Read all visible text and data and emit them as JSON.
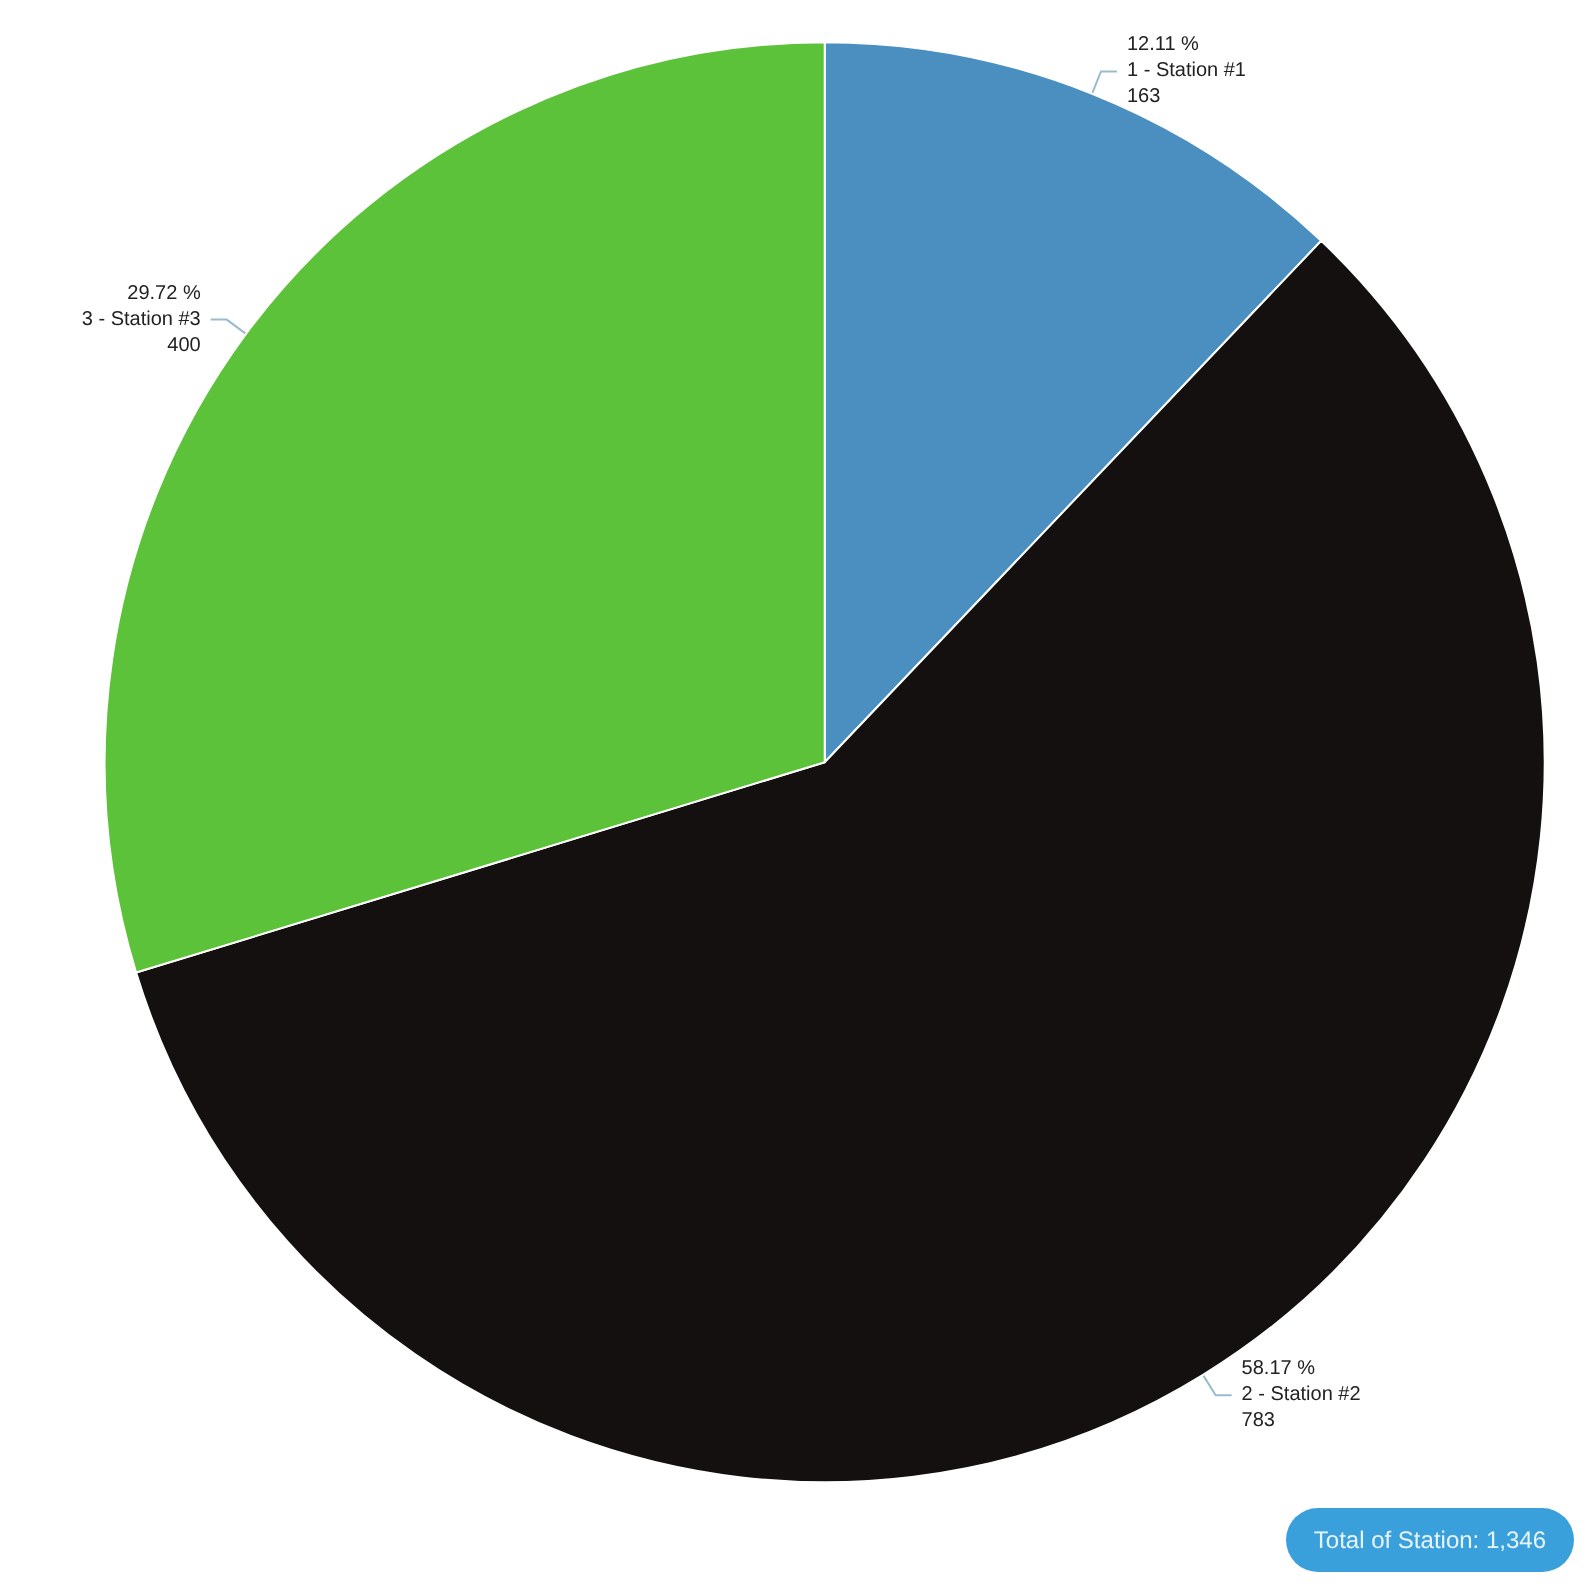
{
  "chart_data": {
    "type": "pie",
    "categories": [
      "1 - Station #1",
      "2 - Station #2",
      "3 - Station #3"
    ],
    "values": [
      163,
      783,
      400
    ],
    "data_labels": true,
    "colors": [
      "#4a8fbf",
      "#141010",
      "#5cc23a"
    ],
    "annotations": [
      {
        "text": "12.11 %",
        "x": "1 - Station #1"
      },
      {
        "text": "58.17 %",
        "x": "2 - Station #2"
      },
      {
        "text": "29.72 %",
        "x": "3 - Station #3"
      },
      "Total of Station: 1,346"
    ],
    "legend": false
  }
}
